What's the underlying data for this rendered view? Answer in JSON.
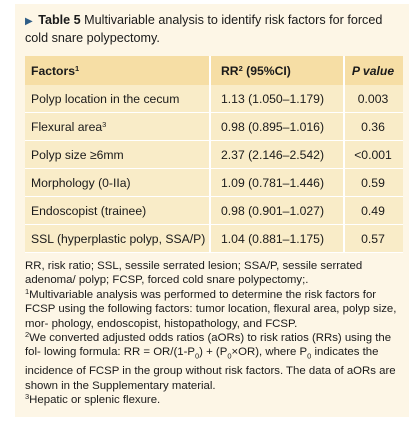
{
  "caption": {
    "arrow": "▶",
    "label": "Table 5",
    "text": "Multivariable analysis to identify risk factors for forced cold snare polypectomy."
  },
  "table": {
    "headers": {
      "factors": "Factors",
      "factors_sup": "1",
      "rr": "RR",
      "rr_sup": "2",
      "rr_rest": " (95%CI)",
      "p": "P value"
    },
    "rows": [
      {
        "factor": "Polyp location in the cecum",
        "sup": "",
        "rr": "1.13 (1.050–1.179)",
        "p": "0.003"
      },
      {
        "factor": "Flexural area",
        "sup": "3",
        "rr": "0.98 (0.895–1.016)",
        "p": "0.36"
      },
      {
        "factor": "Polyp size ≥6mm",
        "sup": "",
        "rr": "2.37 (2.146–2.542)",
        "p": "<0.001"
      },
      {
        "factor": "Morphology (0-IIa)",
        "sup": "",
        "rr": "1.09 (0.781–1.446)",
        "p": "0.59"
      },
      {
        "factor": "Endoscopist (trainee)",
        "sup": "",
        "rr": "0.98 (0.901–1.027)",
        "p": "0.49"
      },
      {
        "factor": "SSL (hyperplastic polyp, SSA/P)",
        "sup": "",
        "rr": "1.04 (0.881–1.175)",
        "p": "0.57"
      }
    ]
  },
  "notes": {
    "abbrev": "RR, risk ratio; SSL, sessile serrated lesion; SSA/P, sessile serrated adenoma/ polyp; FCSP, forced cold snare polypectomy;.",
    "n1_sup": "1",
    "n1": "Multivariable analysis was performed to determine the risk factors for FCSP using the following factors: tumor location, flexural area, polyp size, mor- phology, endoscopist, histopathology, and FCSP.",
    "n2_sup": "2",
    "n2_a": "We converted adjusted odds ratios (aORs) to risk ratios (RRs) using the fol- lowing formula: RR = OR/(1-P",
    "n2_sub": "0",
    "n2_b": ") + (P",
    "n2_sub2": "0",
    "n2_c": "×OR), where P",
    "n2_sub3": "0",
    "n2_d": " indicates the incidence of FCSP in the group without risk factors. The data of aORs are shown in the Supplementary material.",
    "n3_sup": "3",
    "n3": "Hepatic or splenic flexure."
  }
}
